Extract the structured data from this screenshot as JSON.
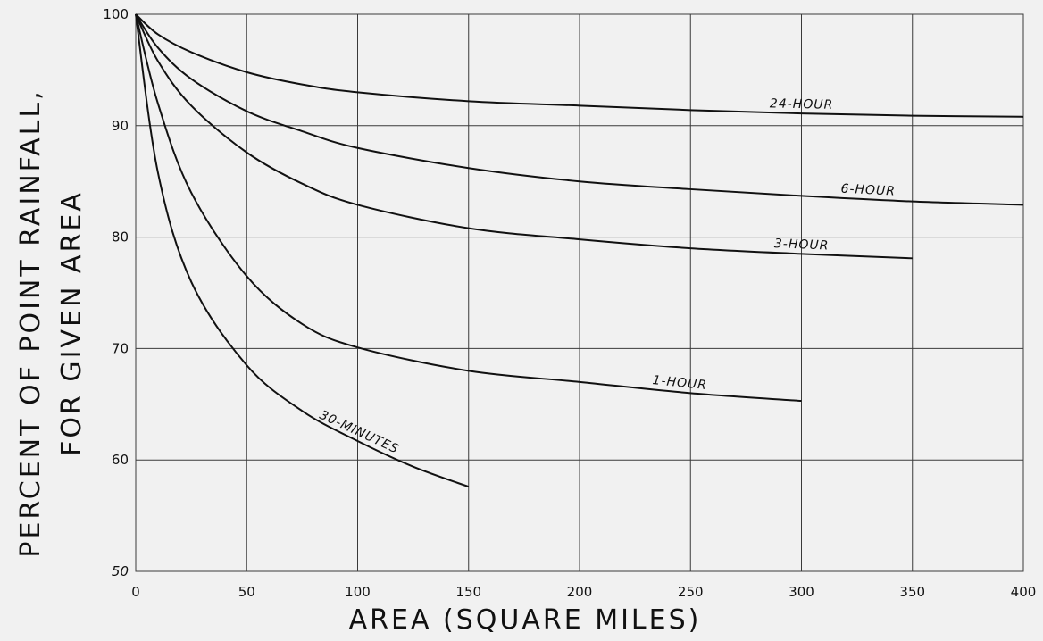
{
  "chart_data": {
    "type": "line",
    "title": "",
    "xlabel": "AREA (SQUARE MILES)",
    "ylabel_lines": [
      "PERCENT OF POINT RAINFALL,",
      "FOR GIVEN AREA"
    ],
    "xlim": [
      0,
      400
    ],
    "ylim": [
      50,
      100
    ],
    "x_ticks": [
      "0",
      "50",
      "100",
      "150",
      "200",
      "250",
      "300",
      "350",
      "400"
    ],
    "y_ticks": [
      "50",
      "60",
      "70",
      "80",
      "90",
      "100"
    ],
    "grid": true,
    "series": [
      {
        "name": "24-HOUR",
        "x": [
          0,
          10,
          25,
          50,
          75,
          100,
          150,
          200,
          250,
          300,
          350,
          400
        ],
        "y": [
          100,
          98.2,
          96.6,
          94.8,
          93.7,
          93.0,
          92.2,
          91.8,
          91.4,
          91.1,
          90.9,
          90.8
        ]
      },
      {
        "name": "6-HOUR",
        "x": [
          0,
          10,
          25,
          50,
          75,
          100,
          150,
          200,
          250,
          300,
          350,
          400
        ],
        "y": [
          100,
          97.0,
          94.2,
          91.3,
          89.5,
          88.0,
          86.2,
          85.0,
          84.3,
          83.7,
          83.2,
          82.9
        ]
      },
      {
        "name": "3-HOUR",
        "x": [
          0,
          10,
          25,
          50,
          75,
          100,
          150,
          200,
          250,
          300,
          350
        ],
        "y": [
          100,
          95.8,
          91.8,
          87.6,
          84.8,
          82.9,
          80.8,
          79.8,
          79.0,
          78.5,
          78.1
        ]
      },
      {
        "name": "1-HOUR",
        "x": [
          0,
          10,
          25,
          50,
          75,
          100,
          150,
          200,
          250,
          300
        ],
        "y": [
          100,
          92.0,
          84.0,
          76.5,
          72.2,
          70.1,
          68.0,
          67.0,
          66.0,
          65.3
        ]
      },
      {
        "name": "30-MINUTES",
        "x": [
          0,
          10,
          25,
          50,
          75,
          100,
          125,
          150
        ],
        "y": [
          100,
          85.8,
          76.0,
          68.5,
          64.4,
          61.7,
          59.4,
          57.6
        ]
      }
    ],
    "curve_labels": [
      {
        "series": "24-HOUR",
        "text": "24-HOUR",
        "at_x": 300
      },
      {
        "series": "6-HOUR",
        "text": "6-HOUR",
        "at_x": 330
      },
      {
        "series": "3-HOUR",
        "text": "3-HOUR",
        "at_x": 300
      },
      {
        "series": "1-HOUR",
        "text": "1-HOUR",
        "at_x": 245
      },
      {
        "series": "30-MINUTES",
        "text": "30-MINUTES",
        "at_x": 100
      }
    ]
  }
}
